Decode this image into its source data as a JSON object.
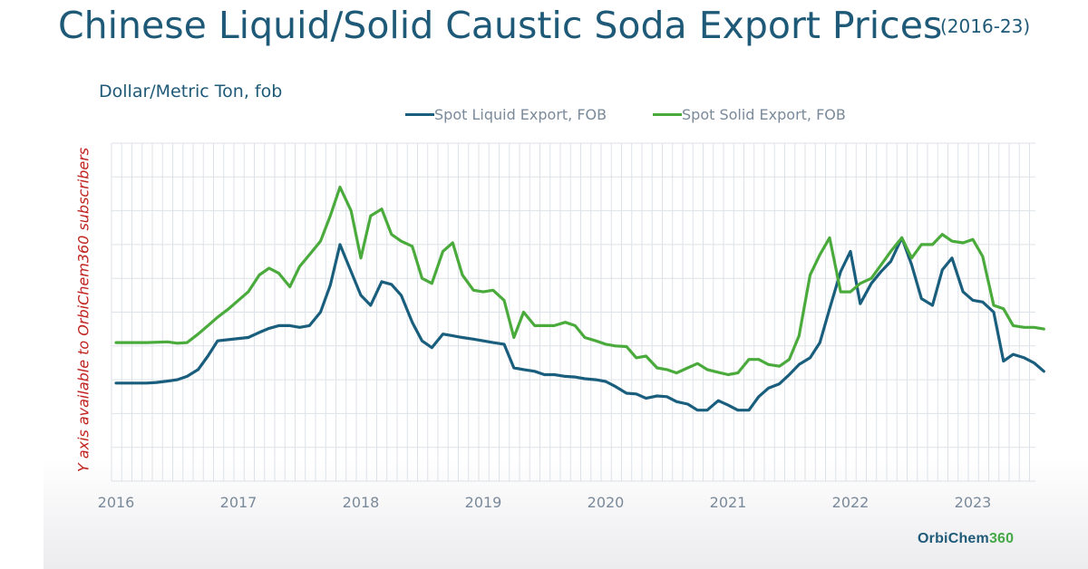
{
  "title": "Chinese Liquid/Solid Caustic Soda Export Prices",
  "title_range": "(2016-23)",
  "unit_label": "Dollar/Metric Ton, fob",
  "y_axis_note": "Y axis available to OrbiChem360 subscribers",
  "logo": {
    "main": "OrbiChem",
    "number": "360"
  },
  "colors": {
    "liquid": "#1a5e7e",
    "solid": "#4aab3c",
    "grid": "#dde2e8",
    "title": "#1e5a78",
    "note": "#c0221e"
  },
  "chart_data": {
    "type": "line",
    "title": "Chinese Liquid/Solid Caustic Soda Export Prices (2016-23)",
    "ylabel": "Dollar/Metric Ton, fob",
    "xlabel": "",
    "x_tick_labels": [
      "2016",
      "2017",
      "2018",
      "2019",
      "2020",
      "2021",
      "2022",
      "2023"
    ],
    "x_range": [
      2016.0,
      2023.5
    ],
    "y_range": [
      0,
      10
    ],
    "y_values_note": "Y axis not labeled; values are relative positions on a 0-10 scale",
    "grid": true,
    "legend_position": "top-center",
    "series": [
      {
        "name": "Spot Liquid Export, FOB",
        "color": "#1a5e7e",
        "points": [
          [
            2016.0,
            2.9
          ],
          [
            2016.25,
            2.9
          ],
          [
            2016.33,
            2.92
          ],
          [
            2016.42,
            2.96
          ],
          [
            2016.5,
            3.0
          ],
          [
            2016.58,
            3.1
          ],
          [
            2016.67,
            3.3
          ],
          [
            2016.75,
            3.7
          ],
          [
            2016.83,
            4.15
          ],
          [
            2017.0,
            4.22
          ],
          [
            2017.08,
            4.25
          ],
          [
            2017.17,
            4.4
          ],
          [
            2017.25,
            4.52
          ],
          [
            2017.33,
            4.6
          ],
          [
            2017.42,
            4.6
          ],
          [
            2017.5,
            4.55
          ],
          [
            2017.58,
            4.6
          ],
          [
            2017.67,
            5.0
          ],
          [
            2017.75,
            5.8
          ],
          [
            2017.83,
            7.0
          ],
          [
            2017.92,
            6.2
          ],
          [
            2018.0,
            5.5
          ],
          [
            2018.08,
            5.2
          ],
          [
            2018.17,
            5.9
          ],
          [
            2018.25,
            5.82
          ],
          [
            2018.33,
            5.5
          ],
          [
            2018.42,
            4.7
          ],
          [
            2018.5,
            4.15
          ],
          [
            2018.58,
            3.95
          ],
          [
            2018.67,
            4.35
          ],
          [
            2018.75,
            4.3
          ],
          [
            2018.83,
            4.25
          ],
          [
            2018.92,
            4.2
          ],
          [
            2019.0,
            4.15
          ],
          [
            2019.08,
            4.1
          ],
          [
            2019.17,
            4.05
          ],
          [
            2019.25,
            3.35
          ],
          [
            2019.33,
            3.3
          ],
          [
            2019.42,
            3.25
          ],
          [
            2019.5,
            3.15
          ],
          [
            2019.58,
            3.15
          ],
          [
            2019.67,
            3.1
          ],
          [
            2019.75,
            3.08
          ],
          [
            2019.83,
            3.03
          ],
          [
            2019.92,
            3.0
          ],
          [
            2020.0,
            2.95
          ],
          [
            2020.08,
            2.8
          ],
          [
            2020.17,
            2.6
          ],
          [
            2020.25,
            2.58
          ],
          [
            2020.33,
            2.45
          ],
          [
            2020.42,
            2.52
          ],
          [
            2020.5,
            2.5
          ],
          [
            2020.58,
            2.35
          ],
          [
            2020.67,
            2.28
          ],
          [
            2020.75,
            2.1
          ],
          [
            2020.83,
            2.1
          ],
          [
            2020.92,
            2.38
          ],
          [
            2021.0,
            2.25
          ],
          [
            2021.08,
            2.1
          ],
          [
            2021.17,
            2.1
          ],
          [
            2021.25,
            2.5
          ],
          [
            2021.33,
            2.75
          ],
          [
            2021.42,
            2.88
          ],
          [
            2021.5,
            3.15
          ],
          [
            2021.58,
            3.45
          ],
          [
            2021.67,
            3.65
          ],
          [
            2021.75,
            4.1
          ],
          [
            2021.83,
            5.1
          ],
          [
            2021.92,
            6.2
          ],
          [
            2022.0,
            6.8
          ],
          [
            2022.08,
            5.25
          ],
          [
            2022.17,
            5.85
          ],
          [
            2022.25,
            6.2
          ],
          [
            2022.33,
            6.5
          ],
          [
            2022.42,
            7.2
          ],
          [
            2022.5,
            6.4
          ],
          [
            2022.58,
            5.4
          ],
          [
            2022.67,
            5.2
          ],
          [
            2022.75,
            6.25
          ],
          [
            2022.83,
            6.6
          ],
          [
            2022.92,
            5.6
          ],
          [
            2023.0,
            5.35
          ],
          [
            2023.08,
            5.3
          ],
          [
            2023.17,
            5.0
          ],
          [
            2023.25,
            3.55
          ],
          [
            2023.33,
            3.75
          ],
          [
            2023.42,
            3.65
          ],
          [
            2023.5,
            3.5
          ],
          [
            2023.58,
            3.25
          ]
        ]
      },
      {
        "name": "Spot Solid Export, FOB",
        "color": "#4aab3c",
        "points": [
          [
            2016.0,
            4.1
          ],
          [
            2016.25,
            4.1
          ],
          [
            2016.42,
            4.12
          ],
          [
            2016.5,
            4.08
          ],
          [
            2016.58,
            4.1
          ],
          [
            2016.67,
            4.35
          ],
          [
            2016.75,
            4.6
          ],
          [
            2016.83,
            4.85
          ],
          [
            2016.92,
            5.1
          ],
          [
            2017.0,
            5.35
          ],
          [
            2017.08,
            5.6
          ],
          [
            2017.17,
            6.1
          ],
          [
            2017.25,
            6.3
          ],
          [
            2017.33,
            6.15
          ],
          [
            2017.42,
            5.75
          ],
          [
            2017.5,
            6.35
          ],
          [
            2017.58,
            6.7
          ],
          [
            2017.67,
            7.1
          ],
          [
            2017.75,
            7.85
          ],
          [
            2017.83,
            8.7
          ],
          [
            2017.92,
            8.0
          ],
          [
            2018.0,
            6.6
          ],
          [
            2018.08,
            7.85
          ],
          [
            2018.17,
            8.05
          ],
          [
            2018.25,
            7.3
          ],
          [
            2018.33,
            7.1
          ],
          [
            2018.42,
            6.95
          ],
          [
            2018.5,
            6.0
          ],
          [
            2018.58,
            5.85
          ],
          [
            2018.67,
            6.8
          ],
          [
            2018.75,
            7.05
          ],
          [
            2018.83,
            6.1
          ],
          [
            2018.92,
            5.65
          ],
          [
            2019.0,
            5.6
          ],
          [
            2019.08,
            5.65
          ],
          [
            2019.17,
            5.35
          ],
          [
            2019.25,
            4.25
          ],
          [
            2019.33,
            5.0
          ],
          [
            2019.42,
            4.6
          ],
          [
            2019.5,
            4.6
          ],
          [
            2019.58,
            4.6
          ],
          [
            2019.67,
            4.7
          ],
          [
            2019.75,
            4.6
          ],
          [
            2019.83,
            4.25
          ],
          [
            2019.92,
            4.15
          ],
          [
            2020.0,
            4.05
          ],
          [
            2020.08,
            4.0
          ],
          [
            2020.17,
            3.98
          ],
          [
            2020.25,
            3.65
          ],
          [
            2020.33,
            3.7
          ],
          [
            2020.42,
            3.35
          ],
          [
            2020.5,
            3.3
          ],
          [
            2020.58,
            3.2
          ],
          [
            2020.67,
            3.35
          ],
          [
            2020.75,
            3.48
          ],
          [
            2020.83,
            3.3
          ],
          [
            2020.92,
            3.22
          ],
          [
            2021.0,
            3.15
          ],
          [
            2021.08,
            3.2
          ],
          [
            2021.17,
            3.6
          ],
          [
            2021.25,
            3.6
          ],
          [
            2021.33,
            3.45
          ],
          [
            2021.42,
            3.4
          ],
          [
            2021.5,
            3.6
          ],
          [
            2021.58,
            4.3
          ],
          [
            2021.67,
            6.1
          ],
          [
            2021.75,
            6.7
          ],
          [
            2021.83,
            7.2
          ],
          [
            2021.92,
            5.6
          ],
          [
            2022.0,
            5.6
          ],
          [
            2022.08,
            5.85
          ],
          [
            2022.17,
            6.0
          ],
          [
            2022.25,
            6.4
          ],
          [
            2022.33,
            6.8
          ],
          [
            2022.42,
            7.2
          ],
          [
            2022.5,
            6.6
          ],
          [
            2022.58,
            7.0
          ],
          [
            2022.67,
            7.0
          ],
          [
            2022.75,
            7.3
          ],
          [
            2022.83,
            7.1
          ],
          [
            2022.92,
            7.05
          ],
          [
            2023.0,
            7.15
          ],
          [
            2023.08,
            6.65
          ],
          [
            2023.17,
            5.2
          ],
          [
            2023.25,
            5.1
          ],
          [
            2023.33,
            4.6
          ],
          [
            2023.42,
            4.55
          ],
          [
            2023.5,
            4.55
          ],
          [
            2023.58,
            4.5
          ]
        ]
      }
    ]
  }
}
